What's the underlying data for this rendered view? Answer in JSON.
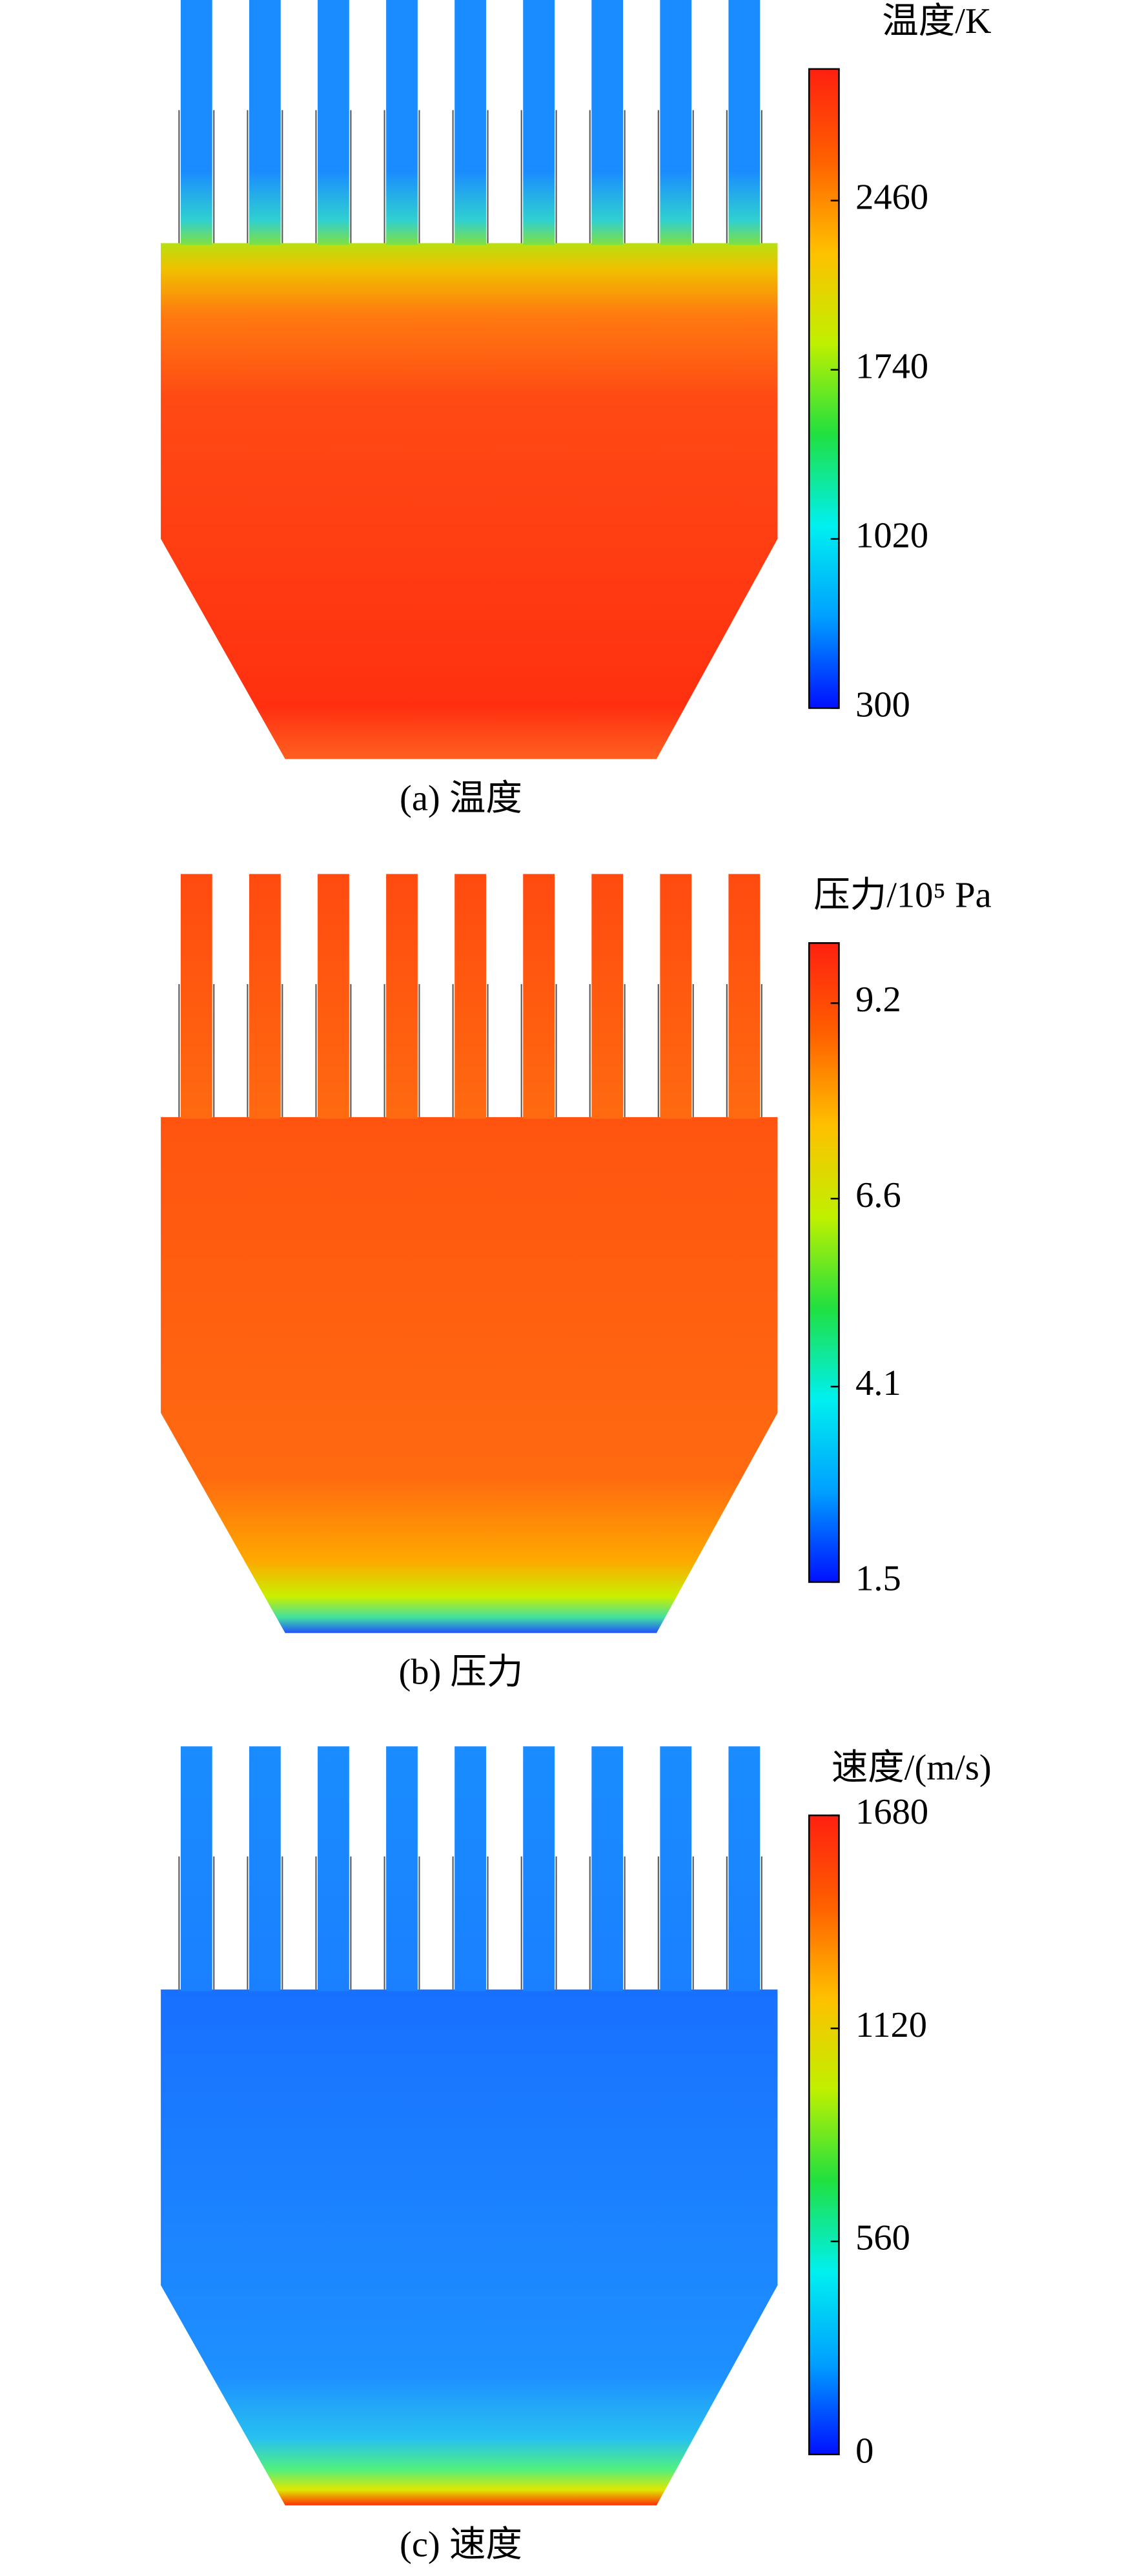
{
  "chart_data": [
    {
      "type": "contour",
      "title": "温度/K",
      "caption": "(a) 温度",
      "clim": [
        300,
        3020
      ],
      "ticks": [
        300,
        1020,
        1740,
        2460
      ],
      "colormap": [
        "#0010ff",
        "#00a0ff",
        "#00f0f0",
        "#20e040",
        "#c0f000",
        "#ffc000",
        "#ff6000",
        "#ff2010"
      ]
    },
    {
      "type": "contour",
      "title": "压力/10⁵ Pa",
      "caption": "(b) 压力",
      "clim": [
        1.5,
        10.0
      ],
      "ticks": [
        1.5,
        4.1,
        6.6,
        9.2
      ],
      "colormap": [
        "#0010ff",
        "#00a0ff",
        "#00f0f0",
        "#20e040",
        "#c0f000",
        "#ffc000",
        "#ff6000",
        "#ff2010"
      ]
    },
    {
      "type": "contour",
      "title": "速度/(m/s)",
      "caption": "(c) 速度",
      "clim": [
        0,
        1680
      ],
      "ticks": [
        0,
        560,
        1120,
        1680
      ],
      "colormap": [
        "#0010ff",
        "#00a0ff",
        "#00f0f0",
        "#20e040",
        "#c0f000",
        "#ffc000",
        "#ff6000",
        "#ff2010"
      ]
    }
  ]
}
